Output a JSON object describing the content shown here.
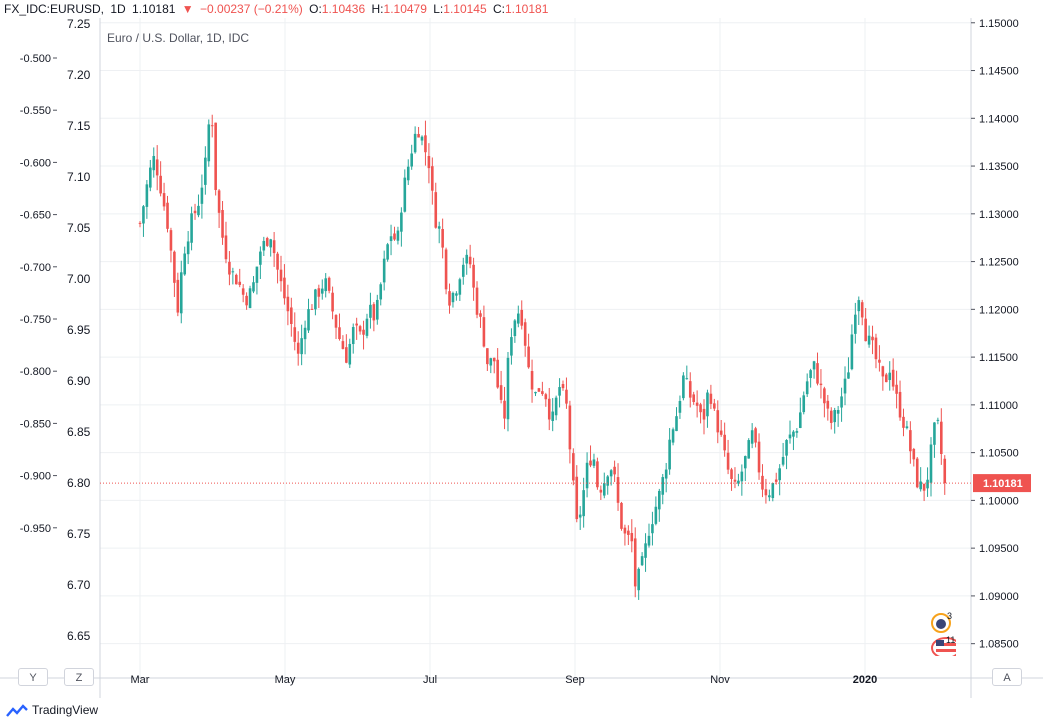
{
  "header": {
    "symbol": "FX_IDC:EURUSD,",
    "interval": "1D",
    "last": "1.10181",
    "change": "−0.00237 (−0.21%)",
    "o_label": "O:",
    "o_value": "1.10436",
    "h_label": "H:",
    "h_value": "1.10479",
    "l_label": "L:",
    "l_value": "1.10145",
    "c_label": "C:",
    "c_value": "1.10181"
  },
  "colors": {
    "up": "#26a69a",
    "down": "#ef5350",
    "grid": "#eef0f3",
    "axis": "#131722"
  },
  "buttons": {
    "left_y": "Y",
    "left_z": "Z",
    "right_a": "A"
  },
  "events": {
    "central_bank_count": "3",
    "us_events_count": "11"
  },
  "branding": {
    "name": "TradingView"
  },
  "chart_data": {
    "type": "candlestick",
    "title": "Euro / U.S. Dollar, 1D, IDC",
    "price_label": "1.10181",
    "x_ticks": [
      "Mar",
      "May",
      "Jul",
      "Sep",
      "Nov",
      "2020"
    ],
    "x_tick_month_index": [
      1,
      3,
      5,
      7,
      9,
      11
    ],
    "y_right": {
      "ticks": [
        "1.15000",
        "1.14500",
        "1.14000",
        "1.13500",
        "1.13000",
        "1.12500",
        "1.12000",
        "1.11500",
        "1.11000",
        "1.10500",
        "1.10000",
        "1.09500",
        "1.09000",
        "1.08500"
      ],
      "range": [
        1.0835,
        1.1505
      ]
    },
    "y_middle": {
      "ticks": [
        "7.25",
        "7.20",
        "7.15",
        "7.10",
        "7.05",
        "7.00",
        "6.95",
        "6.90",
        "6.85",
        "6.80",
        "6.75",
        "6.70",
        "6.65"
      ]
    },
    "y_left": {
      "ticks": [
        "-0.500",
        "-0.550",
        "-0.600",
        "-0.650",
        "-0.700",
        "-0.750",
        "-0.800",
        "-0.850",
        "-0.900",
        "-0.950"
      ]
    },
    "close_series": {
      "start_month_index": 1.0,
      "end_month_index": 12.55,
      "points": [
        [
          1.0,
          1.129
        ],
        [
          1.05,
          1.131
        ],
        [
          1.12,
          1.134
        ],
        [
          1.2,
          1.136
        ],
        [
          1.28,
          1.133
        ],
        [
          1.38,
          1.129
        ],
        [
          1.46,
          1.124
        ],
        [
          1.52,
          1.12
        ],
        [
          1.6,
          1.126
        ],
        [
          1.7,
          1.129
        ],
        [
          1.8,
          1.131
        ],
        [
          1.9,
          1.135
        ],
        [
          1.98,
          1.142
        ],
        [
          2.05,
          1.132
        ],
        [
          2.15,
          1.127
        ],
        [
          2.25,
          1.124
        ],
        [
          2.35,
          1.123
        ],
        [
          2.45,
          1.121
        ],
        [
          2.55,
          1.122
        ],
        [
          2.65,
          1.126
        ],
        [
          2.8,
          1.128
        ],
        [
          2.9,
          1.124
        ],
        [
          3.0,
          1.121
        ],
        [
          3.1,
          1.118
        ],
        [
          3.18,
          1.115
        ],
        [
          3.28,
          1.119
        ],
        [
          3.4,
          1.121
        ],
        [
          3.55,
          1.123
        ],
        [
          3.65,
          1.12
        ],
        [
          3.75,
          1.117
        ],
        [
          3.85,
          1.115
        ],
        [
          3.95,
          1.118
        ],
        [
          4.05,
          1.117
        ],
        [
          4.15,
          1.12
        ],
        [
          4.25,
          1.119
        ],
        [
          4.35,
          1.124
        ],
        [
          4.45,
          1.128
        ],
        [
          4.55,
          1.127
        ],
        [
          4.62,
          1.132
        ],
        [
          4.7,
          1.135
        ],
        [
          4.78,
          1.138
        ],
        [
          4.85,
          1.139
        ],
        [
          4.92,
          1.137
        ],
        [
          5.0,
          1.135
        ],
        [
          5.05,
          1.13
        ],
        [
          5.15,
          1.128
        ],
        [
          5.25,
          1.121
        ],
        [
          5.35,
          1.122
        ],
        [
          5.45,
          1.125
        ],
        [
          5.55,
          1.125
        ],
        [
          5.62,
          1.121
        ],
        [
          5.72,
          1.118
        ],
        [
          5.8,
          1.114
        ],
        [
          5.88,
          1.115
        ],
        [
          5.95,
          1.111
        ],
        [
          6.02,
          1.108
        ],
        [
          6.1,
          1.117
        ],
        [
          6.2,
          1.12
        ],
        [
          6.28,
          1.119
        ],
        [
          6.35,
          1.114
        ],
        [
          6.45,
          1.111
        ],
        [
          6.52,
          1.112
        ],
        [
          6.6,
          1.111
        ],
        [
          6.68,
          1.108
        ],
        [
          6.78,
          1.112
        ],
        [
          6.88,
          1.11
        ],
        [
          6.98,
          1.101
        ],
        [
          7.03,
          1.097
        ],
        [
          7.1,
          1.1
        ],
        [
          7.18,
          1.104
        ],
        [
          7.25,
          1.105
        ],
        [
          7.32,
          1.101
        ],
        [
          7.4,
          1.102
        ],
        [
          7.48,
          1.104
        ],
        [
          7.55,
          1.102
        ],
        [
          7.62,
          1.098
        ],
        [
          7.7,
          1.096
        ],
        [
          7.78,
          1.096
        ],
        [
          7.82,
          1.091
        ],
        [
          7.88,
          1.092
        ],
        [
          7.95,
          1.094
        ],
        [
          8.02,
          1.097
        ],
        [
          8.1,
          1.099
        ],
        [
          8.18,
          1.101
        ],
        [
          8.26,
          1.104
        ],
        [
          8.32,
          1.107
        ],
        [
          8.4,
          1.109
        ],
        [
          8.5,
          1.113
        ],
        [
          8.58,
          1.111
        ],
        [
          8.68,
          1.11
        ],
        [
          8.76,
          1.108
        ],
        [
          8.85,
          1.112
        ],
        [
          8.92,
          1.109
        ],
        [
          9.0,
          1.107
        ],
        [
          9.08,
          1.104
        ],
        [
          9.15,
          1.102
        ],
        [
          9.22,
          1.101
        ],
        [
          9.3,
          1.103
        ],
        [
          9.38,
          1.105
        ],
        [
          9.45,
          1.107
        ],
        [
          9.52,
          1.104
        ],
        [
          9.6,
          1.101
        ],
        [
          9.68,
          1.101
        ],
        [
          9.76,
          1.102
        ],
        [
          9.85,
          1.104
        ],
        [
          9.92,
          1.106
        ],
        [
          10.0,
          1.107
        ],
        [
          10.08,
          1.108
        ],
        [
          10.15,
          1.111
        ],
        [
          10.22,
          1.113
        ],
        [
          10.3,
          1.114
        ],
        [
          10.38,
          1.112
        ],
        [
          10.45,
          1.11
        ],
        [
          10.52,
          1.108
        ],
        [
          10.6,
          1.109
        ],
        [
          10.68,
          1.111
        ],
        [
          10.76,
          1.113
        ],
        [
          10.84,
          1.119
        ],
        [
          10.9,
          1.122
        ],
        [
          10.96,
          1.12
        ],
        [
          11.02,
          1.117
        ],
        [
          11.1,
          1.116
        ],
        [
          11.18,
          1.114
        ],
        [
          11.26,
          1.112
        ],
        [
          11.34,
          1.114
        ],
        [
          11.42,
          1.111
        ],
        [
          11.5,
          1.109
        ],
        [
          11.58,
          1.107
        ],
        [
          11.66,
          1.104
        ],
        [
          11.72,
          1.102
        ],
        [
          11.8,
          1.101
        ],
        [
          11.88,
          1.103
        ],
        [
          11.94,
          1.107
        ],
        [
          12.0,
          1.108
        ],
        [
          12.05,
          1.105
        ],
        [
          12.1,
          1.1018
        ]
      ]
    }
  }
}
